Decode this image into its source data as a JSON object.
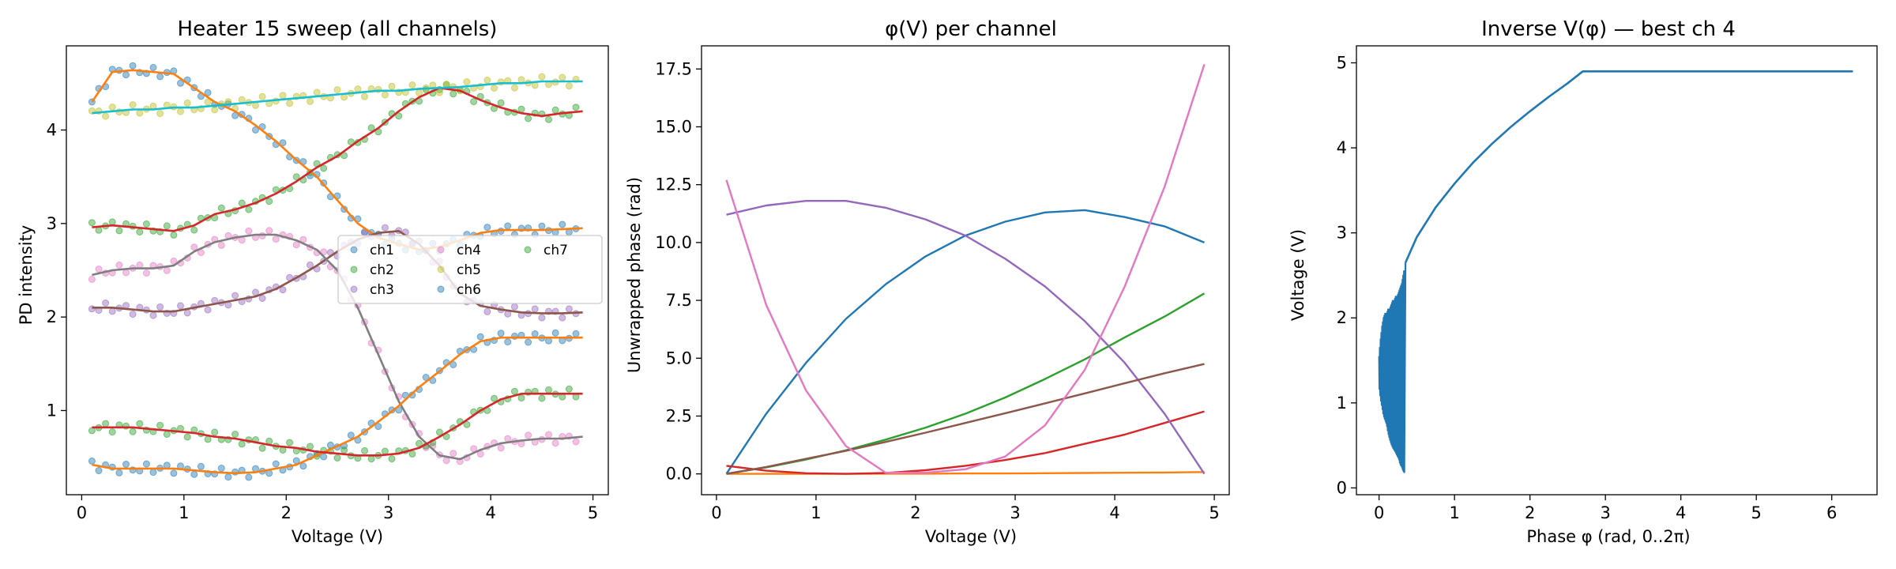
{
  "chart_data": [
    {
      "type": "scatter",
      "title": "Heater 15 sweep (all channels)",
      "xlabel": "Voltage (V)",
      "ylabel": "PD intensity",
      "xlim": [
        -0.15,
        5.15
      ],
      "ylim": [
        0.1,
        4.9
      ],
      "xticks": [
        0,
        1,
        2,
        3,
        4,
        5
      ],
      "yticks": [
        1,
        2,
        3,
        4
      ],
      "grid": false,
      "legend": {
        "placement": "center-right",
        "ncol": 3,
        "entries": [
          "ch1",
          "ch2",
          "ch3",
          "ch4",
          "ch5",
          "ch6",
          "ch7"
        ]
      },
      "series": [
        {
          "name": "ch1",
          "color": "#1f77b4",
          "fit_color": "#ff7f0e",
          "x": [
            0.1,
            0.3,
            0.5,
            0.7,
            0.9,
            1.1,
            1.3,
            1.5,
            1.7,
            1.9,
            2.1,
            2.3,
            2.5,
            2.7,
            2.9,
            3.1,
            3.3,
            3.5,
            3.7,
            3.9,
            4.1,
            4.3,
            4.5,
            4.7,
            4.9
          ],
          "y": [
            4.3,
            4.62,
            4.64,
            4.62,
            4.6,
            4.45,
            4.3,
            4.2,
            4.05,
            3.88,
            3.68,
            3.5,
            3.25,
            3.0,
            2.85,
            2.78,
            2.72,
            2.75,
            2.82,
            2.9,
            2.93,
            2.93,
            2.93,
            2.94,
            2.95
          ]
        },
        {
          "name": "ch2",
          "color": "#2ca02c",
          "fit_color": "#d62728",
          "x": [
            0.1,
            0.3,
            0.5,
            0.7,
            0.9,
            1.1,
            1.3,
            1.5,
            1.7,
            1.9,
            2.1,
            2.3,
            2.5,
            2.7,
            2.9,
            3.1,
            3.3,
            3.5,
            3.7,
            3.9,
            4.1,
            4.3,
            4.5,
            4.7,
            4.9
          ],
          "y": [
            2.96,
            2.98,
            2.96,
            2.94,
            2.92,
            2.98,
            3.1,
            3.15,
            3.22,
            3.32,
            3.45,
            3.6,
            3.72,
            3.88,
            4.02,
            4.2,
            4.35,
            4.45,
            4.42,
            4.32,
            4.24,
            4.18,
            4.15,
            4.18,
            4.2
          ]
        },
        {
          "name": "ch3",
          "color": "#9467bd",
          "fit_color": "#8c564b",
          "x": [
            0.1,
            0.3,
            0.5,
            0.7,
            0.9,
            1.1,
            1.3,
            1.5,
            1.7,
            1.9,
            2.1,
            2.3,
            2.5,
            2.7,
            2.9,
            3.1,
            3.3,
            3.5,
            3.7,
            3.9,
            4.1,
            4.3,
            4.5,
            4.7,
            4.9
          ],
          "y": [
            2.1,
            2.1,
            2.08,
            2.06,
            2.06,
            2.1,
            2.14,
            2.18,
            2.22,
            2.3,
            2.42,
            2.55,
            2.7,
            2.83,
            2.9,
            2.92,
            2.78,
            2.55,
            2.25,
            2.12,
            2.08,
            2.05,
            2.04,
            2.04,
            2.05
          ]
        },
        {
          "name": "ch4",
          "color": "#e377c2",
          "fit_color": "#7f7f7f",
          "x": [
            0.1,
            0.3,
            0.5,
            0.7,
            0.9,
            1.1,
            1.3,
            1.5,
            1.7,
            1.9,
            2.1,
            2.3,
            2.5,
            2.7,
            2.9,
            3.1,
            3.3,
            3.5,
            3.7,
            3.9,
            4.1,
            4.3,
            4.5,
            4.7,
            4.9
          ],
          "y": [
            2.45,
            2.5,
            2.52,
            2.52,
            2.55,
            2.7,
            2.8,
            2.85,
            2.88,
            2.88,
            2.82,
            2.72,
            2.5,
            2.1,
            1.6,
            1.1,
            0.72,
            0.52,
            0.48,
            0.58,
            0.65,
            0.68,
            0.7,
            0.7,
            0.72
          ]
        },
        {
          "name": "ch5",
          "color": "#bcbd22",
          "fit_color": "#17becf",
          "x": [
            0.1,
            0.3,
            0.5,
            0.7,
            0.9,
            1.1,
            1.3,
            1.5,
            1.7,
            1.9,
            2.1,
            2.3,
            2.5,
            2.7,
            2.9,
            3.1,
            3.3,
            3.5,
            3.7,
            3.9,
            4.1,
            4.3,
            4.5,
            4.7,
            4.9
          ],
          "y": [
            4.18,
            4.2,
            4.22,
            4.22,
            4.24,
            4.24,
            4.26,
            4.28,
            4.3,
            4.32,
            4.34,
            4.36,
            4.38,
            4.4,
            4.42,
            4.42,
            4.44,
            4.45,
            4.46,
            4.48,
            4.5,
            4.5,
            4.52,
            4.52,
            4.52
          ]
        },
        {
          "name": "ch6",
          "color": "#1f77b4",
          "fit_color": "#ff7f0e",
          "x": [
            0.1,
            0.3,
            0.5,
            0.7,
            0.9,
            1.1,
            1.3,
            1.5,
            1.7,
            1.9,
            2.1,
            2.3,
            2.5,
            2.7,
            2.9,
            3.1,
            3.3,
            3.5,
            3.7,
            3.9,
            4.1,
            4.3,
            4.5,
            4.7,
            4.9
          ],
          "y": [
            0.42,
            0.38,
            0.38,
            0.38,
            0.38,
            0.36,
            0.34,
            0.33,
            0.34,
            0.38,
            0.42,
            0.52,
            0.62,
            0.72,
            0.88,
            1.05,
            1.25,
            1.42,
            1.6,
            1.74,
            1.78,
            1.78,
            1.78,
            1.78,
            1.78
          ]
        },
        {
          "name": "ch7",
          "color": "#2ca02c",
          "fit_color": "#d62728",
          "x": [
            0.1,
            0.3,
            0.5,
            0.7,
            0.9,
            1.1,
            1.3,
            1.5,
            1.7,
            1.9,
            2.1,
            2.3,
            2.5,
            2.7,
            2.9,
            3.1,
            3.3,
            3.5,
            3.7,
            3.9,
            4.1,
            4.3,
            4.5,
            4.7,
            4.9
          ],
          "y": [
            0.82,
            0.82,
            0.82,
            0.8,
            0.78,
            0.76,
            0.72,
            0.7,
            0.66,
            0.62,
            0.6,
            0.56,
            0.54,
            0.52,
            0.52,
            0.54,
            0.6,
            0.72,
            0.85,
            1.0,
            1.12,
            1.18,
            1.18,
            1.18,
            1.18
          ]
        }
      ]
    },
    {
      "type": "line",
      "title": "φ(V) per channel",
      "xlabel": "Voltage (V)",
      "ylabel": "Unwrapped phase (rad)",
      "xlim": [
        -0.15,
        5.15
      ],
      "ylim": [
        -0.9,
        18.5
      ],
      "xticks": [
        0,
        1,
        2,
        3,
        4,
        5
      ],
      "yticks": [
        "0.0",
        "2.5",
        "5.0",
        "7.5",
        "10.0",
        "12.5",
        "15.0",
        "17.5"
      ],
      "grid": false,
      "x": [
        0.1,
        0.5,
        0.9,
        1.3,
        1.7,
        2.1,
        2.5,
        2.9,
        3.3,
        3.7,
        4.1,
        4.5,
        4.9
      ],
      "series": [
        {
          "color": "#1f77b4",
          "values": [
            0.0,
            2.6,
            4.8,
            6.7,
            8.2,
            9.4,
            10.3,
            10.9,
            11.3,
            11.4,
            11.1,
            10.7,
            10.0
          ]
        },
        {
          "color": "#ff7f0e",
          "values": [
            0.0,
            0.0,
            0.0,
            0.0,
            0.01,
            0.01,
            0.02,
            0.02,
            0.03,
            0.04,
            0.05,
            0.06,
            0.08
          ]
        },
        {
          "color": "#2ca02c",
          "values": [
            0.0,
            0.28,
            0.62,
            1.02,
            1.48,
            2.0,
            2.6,
            3.3,
            4.1,
            4.95,
            5.9,
            6.8,
            7.8
          ]
        },
        {
          "color": "#d62728",
          "values": [
            0.35,
            0.14,
            0.03,
            0.0,
            0.04,
            0.16,
            0.35,
            0.6,
            0.9,
            1.3,
            1.7,
            2.2,
            2.7
          ]
        },
        {
          "color": "#9467bd",
          "values": [
            11.2,
            11.6,
            11.8,
            11.8,
            11.5,
            11.0,
            10.3,
            9.3,
            8.1,
            6.6,
            4.8,
            2.6,
            0.0
          ]
        },
        {
          "color": "#8c564b",
          "values": [
            0.0,
            0.3,
            0.65,
            1.0,
            1.38,
            1.78,
            2.2,
            2.62,
            3.05,
            3.48,
            3.92,
            4.35,
            4.75
          ]
        },
        {
          "color": "#e377c2",
          "values": [
            12.7,
            7.3,
            3.6,
            1.2,
            0.05,
            0.05,
            0.2,
            0.75,
            2.1,
            4.5,
            8.1,
            12.4,
            17.7
          ]
        }
      ]
    },
    {
      "type": "line",
      "title": "Inverse V(φ) — best ch 4",
      "xlabel": "Phase φ (rad, 0..2π)",
      "ylabel": "Voltage (V)",
      "xlim": [
        -0.3,
        6.6
      ],
      "ylim": [
        -0.08,
        5.2
      ],
      "xticks": [
        0,
        1,
        2,
        3,
        4,
        5,
        6
      ],
      "yticks": [
        0,
        1,
        2,
        3,
        4,
        5
      ],
      "grid": false,
      "series": [
        {
          "color": "#1f77b4",
          "x": [
            0.35,
            0.5,
            0.75,
            1.0,
            1.25,
            1.5,
            1.75,
            2.0,
            2.25,
            2.5,
            2.7,
            3.5,
            4.5,
            5.5,
            6.28
          ],
          "y": [
            2.65,
            2.95,
            3.3,
            3.58,
            3.83,
            4.05,
            4.25,
            4.43,
            4.6,
            4.76,
            4.9,
            4.9,
            4.9,
            4.9,
            4.9
          ]
        },
        {
          "color": "#1f77b4",
          "kind": "noisy-band",
          "x": [
            0.0,
            0.02,
            0.04,
            0.06,
            0.08,
            0.1,
            0.12,
            0.14,
            0.16,
            0.18,
            0.2,
            0.22,
            0.24,
            0.26,
            0.28,
            0.3,
            0.32,
            0.34
          ],
          "upper": [
            1.55,
            1.75,
            1.9,
            2.0,
            2.05,
            2.05,
            2.1,
            2.1,
            2.15,
            2.2,
            2.2,
            2.25,
            2.25,
            2.3,
            2.35,
            2.4,
            2.5,
            2.6
          ],
          "lower": [
            1.2,
            1.05,
            0.95,
            0.85,
            0.8,
            0.75,
            0.65,
            0.58,
            0.52,
            0.48,
            0.45,
            0.42,
            0.38,
            0.35,
            0.28,
            0.25,
            0.2,
            0.18
          ]
        }
      ]
    }
  ]
}
